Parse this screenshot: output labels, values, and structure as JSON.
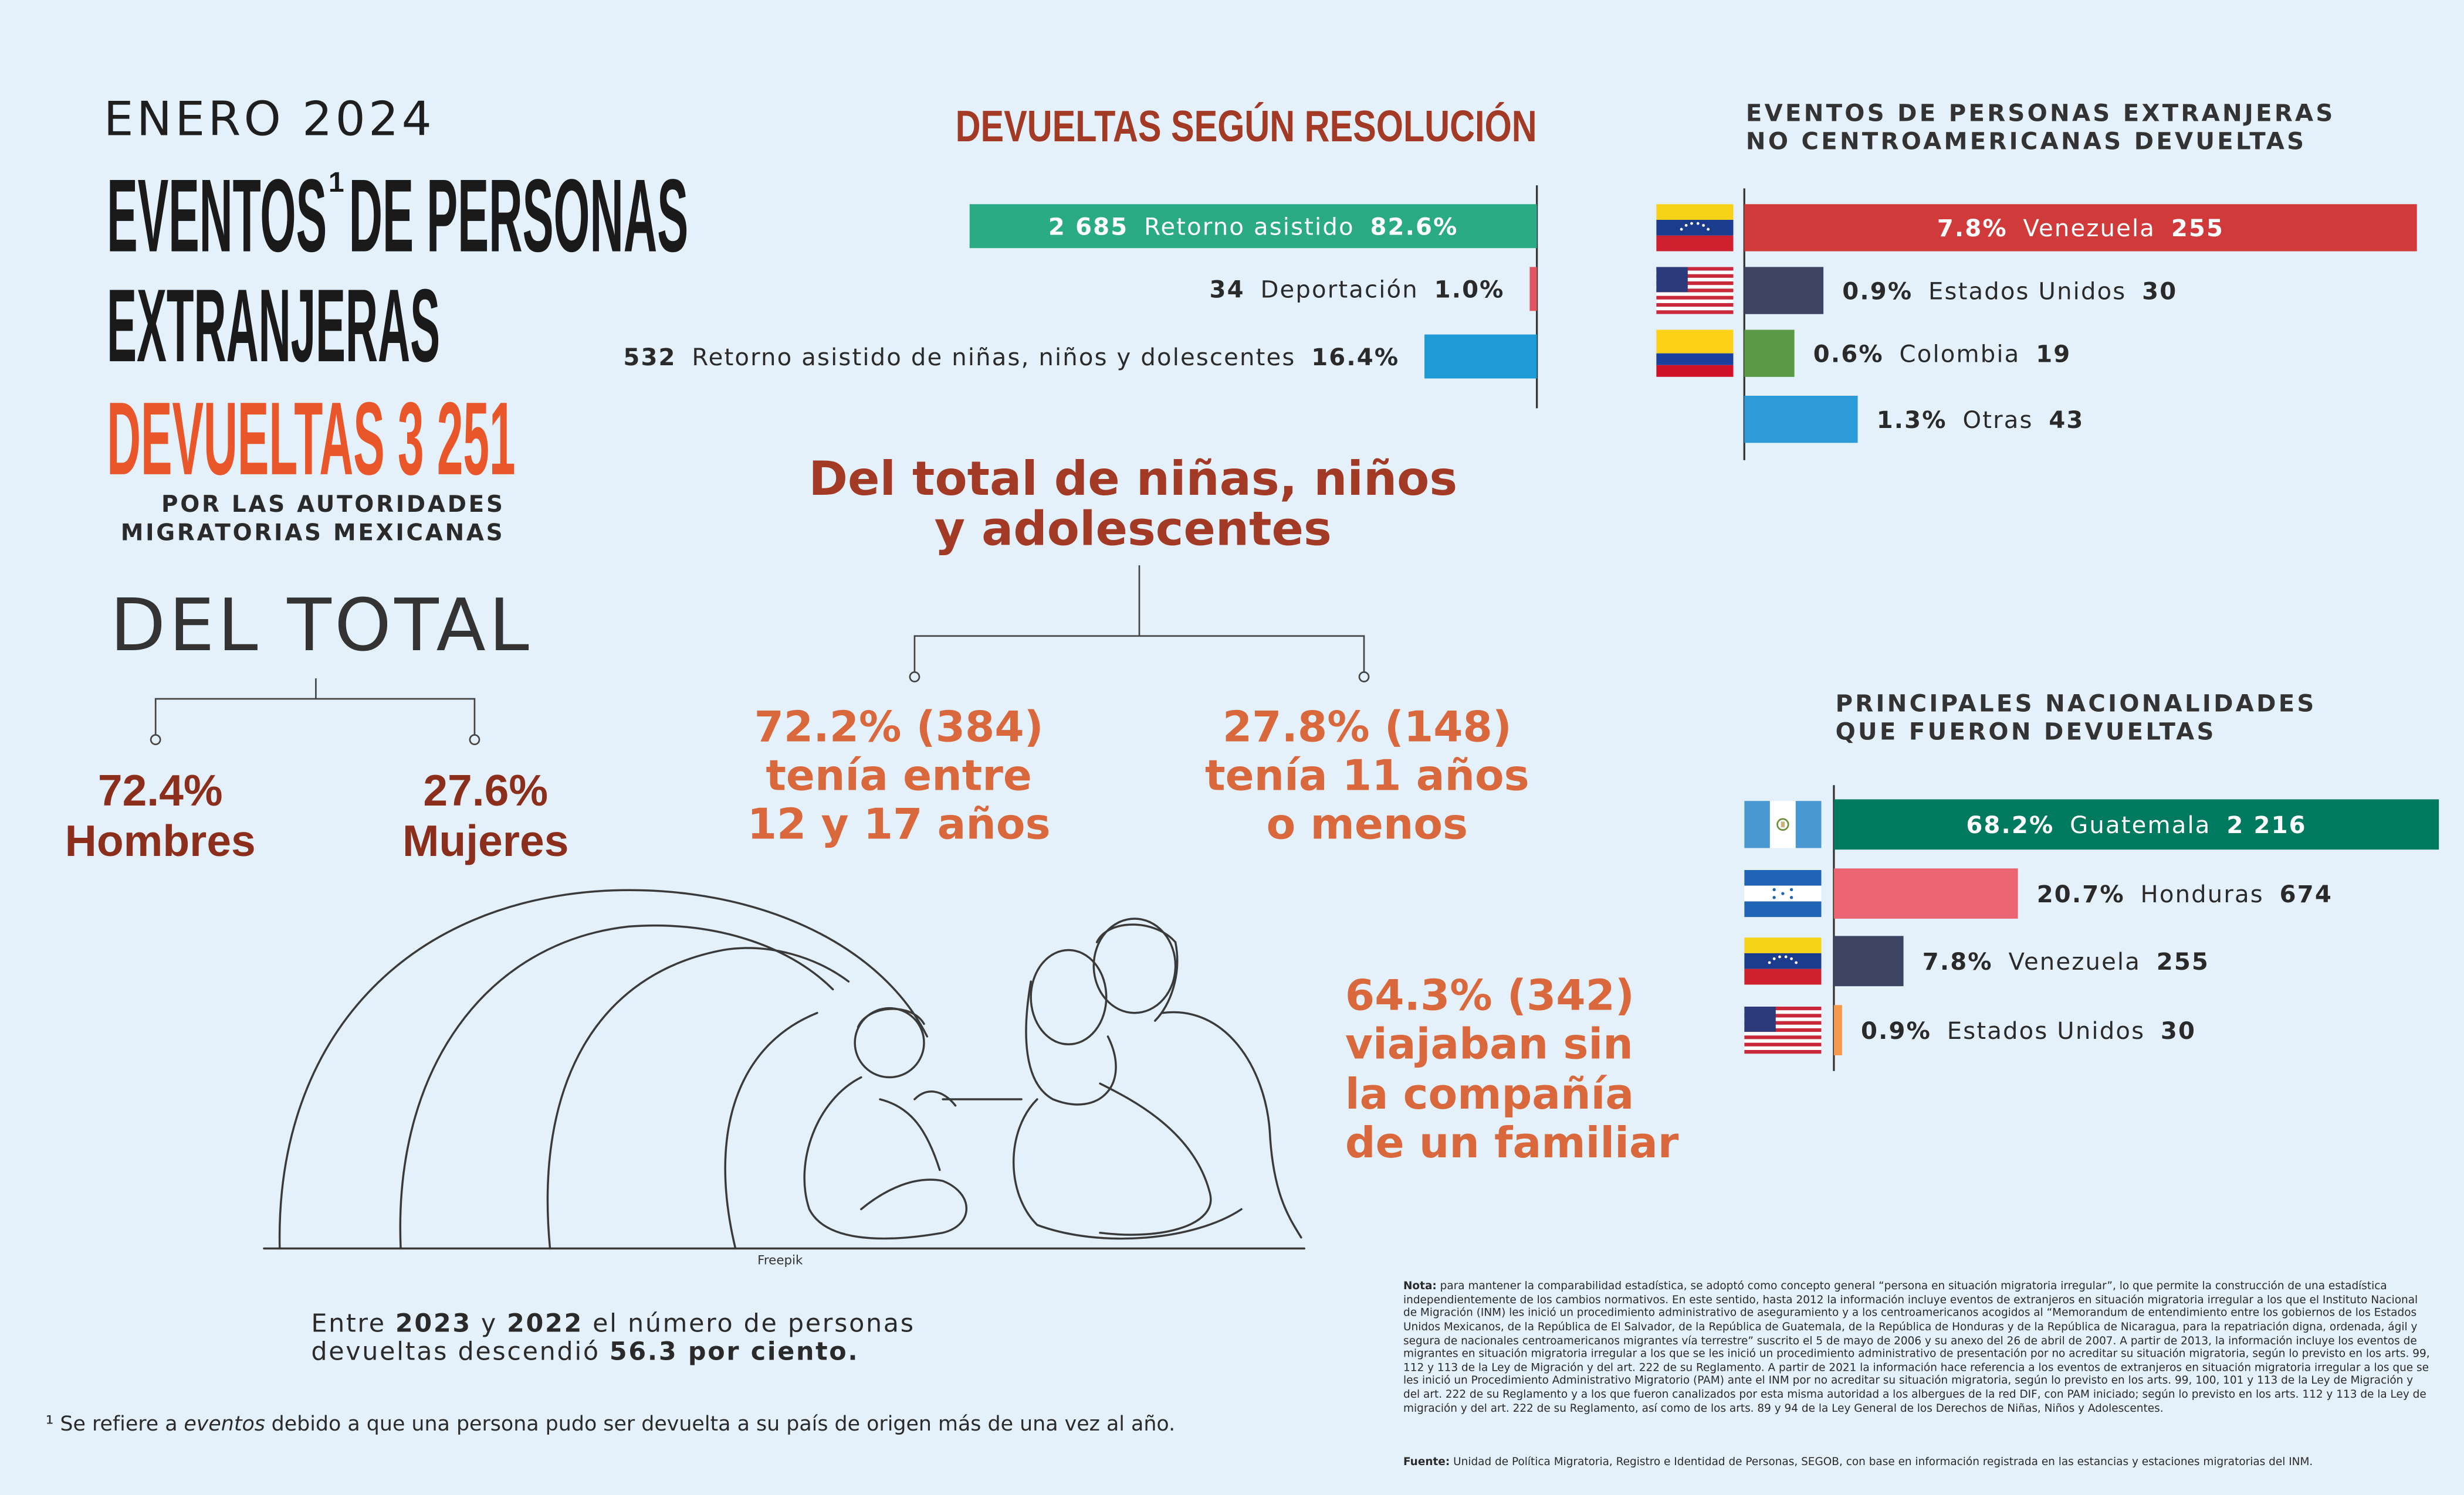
{
  "header": {
    "date": "ENERO 2024",
    "title_1": "EVENTOS",
    "footnote_mark": "1",
    "title_2": "DE PERSONAS",
    "title_3": "EXTRANJERAS",
    "title_4": "DEVUELTAS 3 251",
    "subtitle_1": "POR LAS AUTORIDADES",
    "subtitle_2": "MIGRATORIAS MEXICANAS"
  },
  "sex": {
    "title": "DEL TOTAL",
    "items": [
      {
        "percent": "72.4%",
        "label": "Hombres"
      },
      {
        "percent": "27.6%",
        "label": "Mujeres"
      }
    ]
  },
  "minors": {
    "title": [
      "Del total de niñas, niños",
      "y adolescentes"
    ],
    "groups": [
      {
        "figure": "72.2% (384)",
        "text": [
          "tenía entre",
          "12 y 17 años"
        ]
      },
      {
        "figure": "27.8% (148)",
        "text": [
          "tenía 11 años",
          "o menos"
        ]
      }
    ],
    "unaccompanied": {
      "figure": "64.3% (342)",
      "text": [
        "viajaban sin",
        "la compañía",
        "de un familiar"
      ]
    }
  },
  "illustration_credit": "Freepik",
  "summary": {
    "text_1": "Entre",
    "year_1": "2023",
    "text_2": "y",
    "year_2": "2022",
    "text_3": "el número de personas",
    "text_4": "devueltas descendió",
    "percent": "56.3 por ciento."
  },
  "footnote": {
    "mark": "¹",
    "text_1": "Se refiere a",
    "emphasis": "eventos",
    "text_2": "debido a que una persona pudo ser devuelta a su país de origen más de una vez al año."
  },
  "note": {
    "label": "Nota:",
    "text": "para mantener la comparabilidad estadística, se adoptó como concepto general “persona en situación migratoria irregular”, lo que permite la construcción de una estadística independientemente de los cambios normativos. En este sentido, hasta 2012 la información incluye eventos de extranjeros en situación migratoria irregular a los que el Instituto Nacional de Migración (INM) les inició un procedimiento administrativo de aseguramiento y a los centroamericanos acogidos al “Memorandum de entendimiento entre los gobiernos de los Estados Unidos Mexicanos, de la República de El Salvador, de la República de Guatemala, de la República de Honduras y de la República de Nicaragua, para la repatriación digna, ordenada, ágil y segura de nacionales centroamericanos migrantes vía terrestre” suscrito el 5 de mayo de 2006 y su anexo del 26 de abril de 2007. A partir de 2013, la información incluye los eventos de migrantes en situación migratoria irregular a los que se les inició un procedimiento administrativo de presentación por no acreditar su situación migratoria, según lo previsto en los arts. 99, 112 y 113 de la Ley de Migración y del art. 222 de su Reglamento. A partir de 2021 la información hace referencia a los eventos de extranjeros en situación migratoria irregular a los que se les inició un Procedimiento Administrativo Migratorio (PAM) ante el INM por no acreditar su situación migratoria, según lo previsto en los arts. 99, 100, 101 y 113 de la Ley de Migración y del art. 222 de su Reglamento y a los que fueron canalizados por esta misma autoridad a los albergues de la red DIF, con PAM iniciado; según lo previsto en los arts. 112 y 113 de la Ley de migración y del art. 222 de su Reglamento, así como de los arts. 89 y 94 de la Ley General de los Derechos de Niñas, Niños y Adolescentes."
  },
  "source": {
    "label": "Fuente:",
    "text": "Unidad de Política Migratoria, Registro e Identidad de Personas, SEGOB, con base en información registrada en las estancias y estaciones migratorias del INM."
  },
  "chart_data": [
    {
      "type": "bar",
      "title": [
        "DEVUELTAS SEGÚN RESOLUCIÓN"
      ],
      "categories": [
        "Retorno asistido",
        "Deportación",
        "Retorno asistido de niñas, niños y dolescentes"
      ],
      "values": [
        2685,
        34,
        532
      ],
      "value_labels": [
        "2 685",
        "34",
        "532"
      ],
      "percent_labels": [
        "82.6%",
        "1.0%",
        "16.4%"
      ],
      "colors": [
        "#2aab84",
        "#e05560",
        "#1e9bd7"
      ]
    },
    {
      "type": "bar",
      "title": [
        "EVENTOS DE PERSONAS EXTRANJERAS",
        "NO CENTROAMERICANAS DEVUELTAS"
      ],
      "categories": [
        "Venezuela",
        "Estados Unidos",
        "Colombia",
        "Otras"
      ],
      "values": [
        255,
        30,
        19,
        43
      ],
      "percent_labels": [
        "7.8%",
        "0.9%",
        "0.6%",
        "1.3%"
      ],
      "colors": [
        "#d13a3a",
        "#3d4563",
        "#5a9a44",
        "#2d9bd8"
      ]
    },
    {
      "type": "bar",
      "title": [
        "PRINCIPALES NACIONALIDADES",
        "QUE FUERON DEVUELTAS"
      ],
      "categories": [
        "Guatemala",
        "Honduras",
        "Venezuela",
        "Estados Unidos"
      ],
      "values": [
        2216,
        674,
        255,
        30
      ],
      "value_labels": [
        "2 216",
        "674",
        "255",
        "30"
      ],
      "percent_labels": [
        "68.2%",
        "20.7%",
        "7.8%",
        "0.9%"
      ],
      "colors": [
        "#007a5e",
        "#ea6472",
        "#3d4563",
        "#f59a4d"
      ]
    }
  ]
}
